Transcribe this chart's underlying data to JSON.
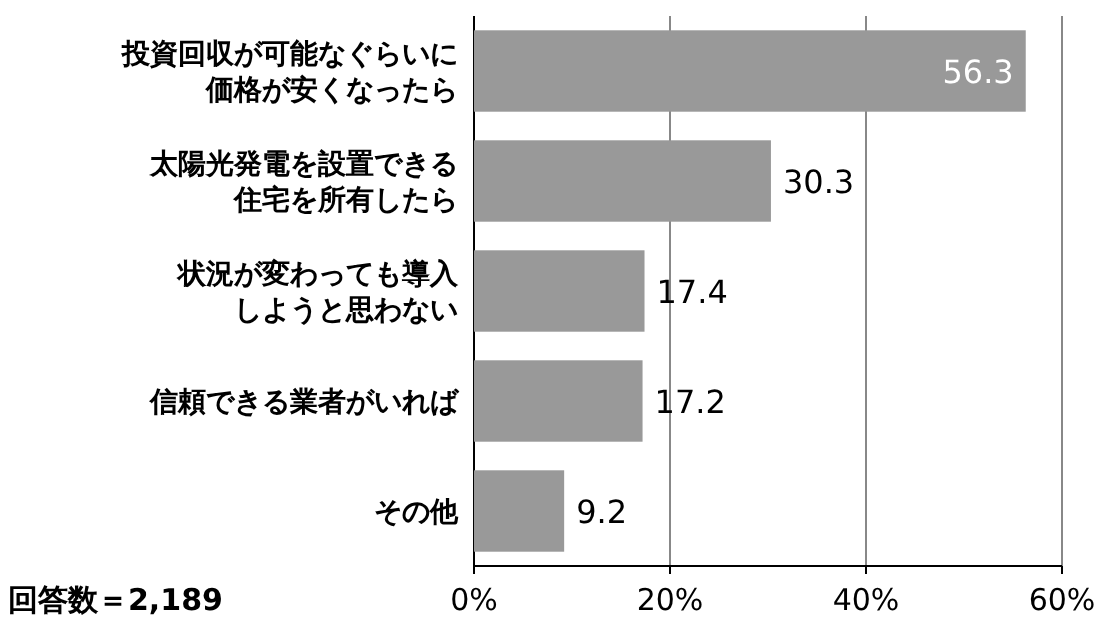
{
  "chart_data": {
    "type": "bar",
    "orientation": "horizontal",
    "categories": [
      "投資回収が可能なぐらいに価格が安くなったら",
      "太陽光発電を設置できる住宅を所有したら",
      "状況が変わっても導入しようと思わない",
      "信頼できる業者がいれば",
      "その他"
    ],
    "values": [
      56.3,
      30.3,
      17.4,
      17.2,
      9.2
    ],
    "color": "#999999",
    "xlim": [
      0,
      60
    ],
    "xticks": [
      {
        "value": 0,
        "label": "0%"
      },
      {
        "value": 20,
        "label": "20%"
      },
      {
        "value": 40,
        "label": "40%"
      },
      {
        "value": 60,
        "label": "60%"
      }
    ],
    "grid": "x",
    "data_labels": true,
    "annotations": [
      "回答数＝2,189"
    ]
  }
}
